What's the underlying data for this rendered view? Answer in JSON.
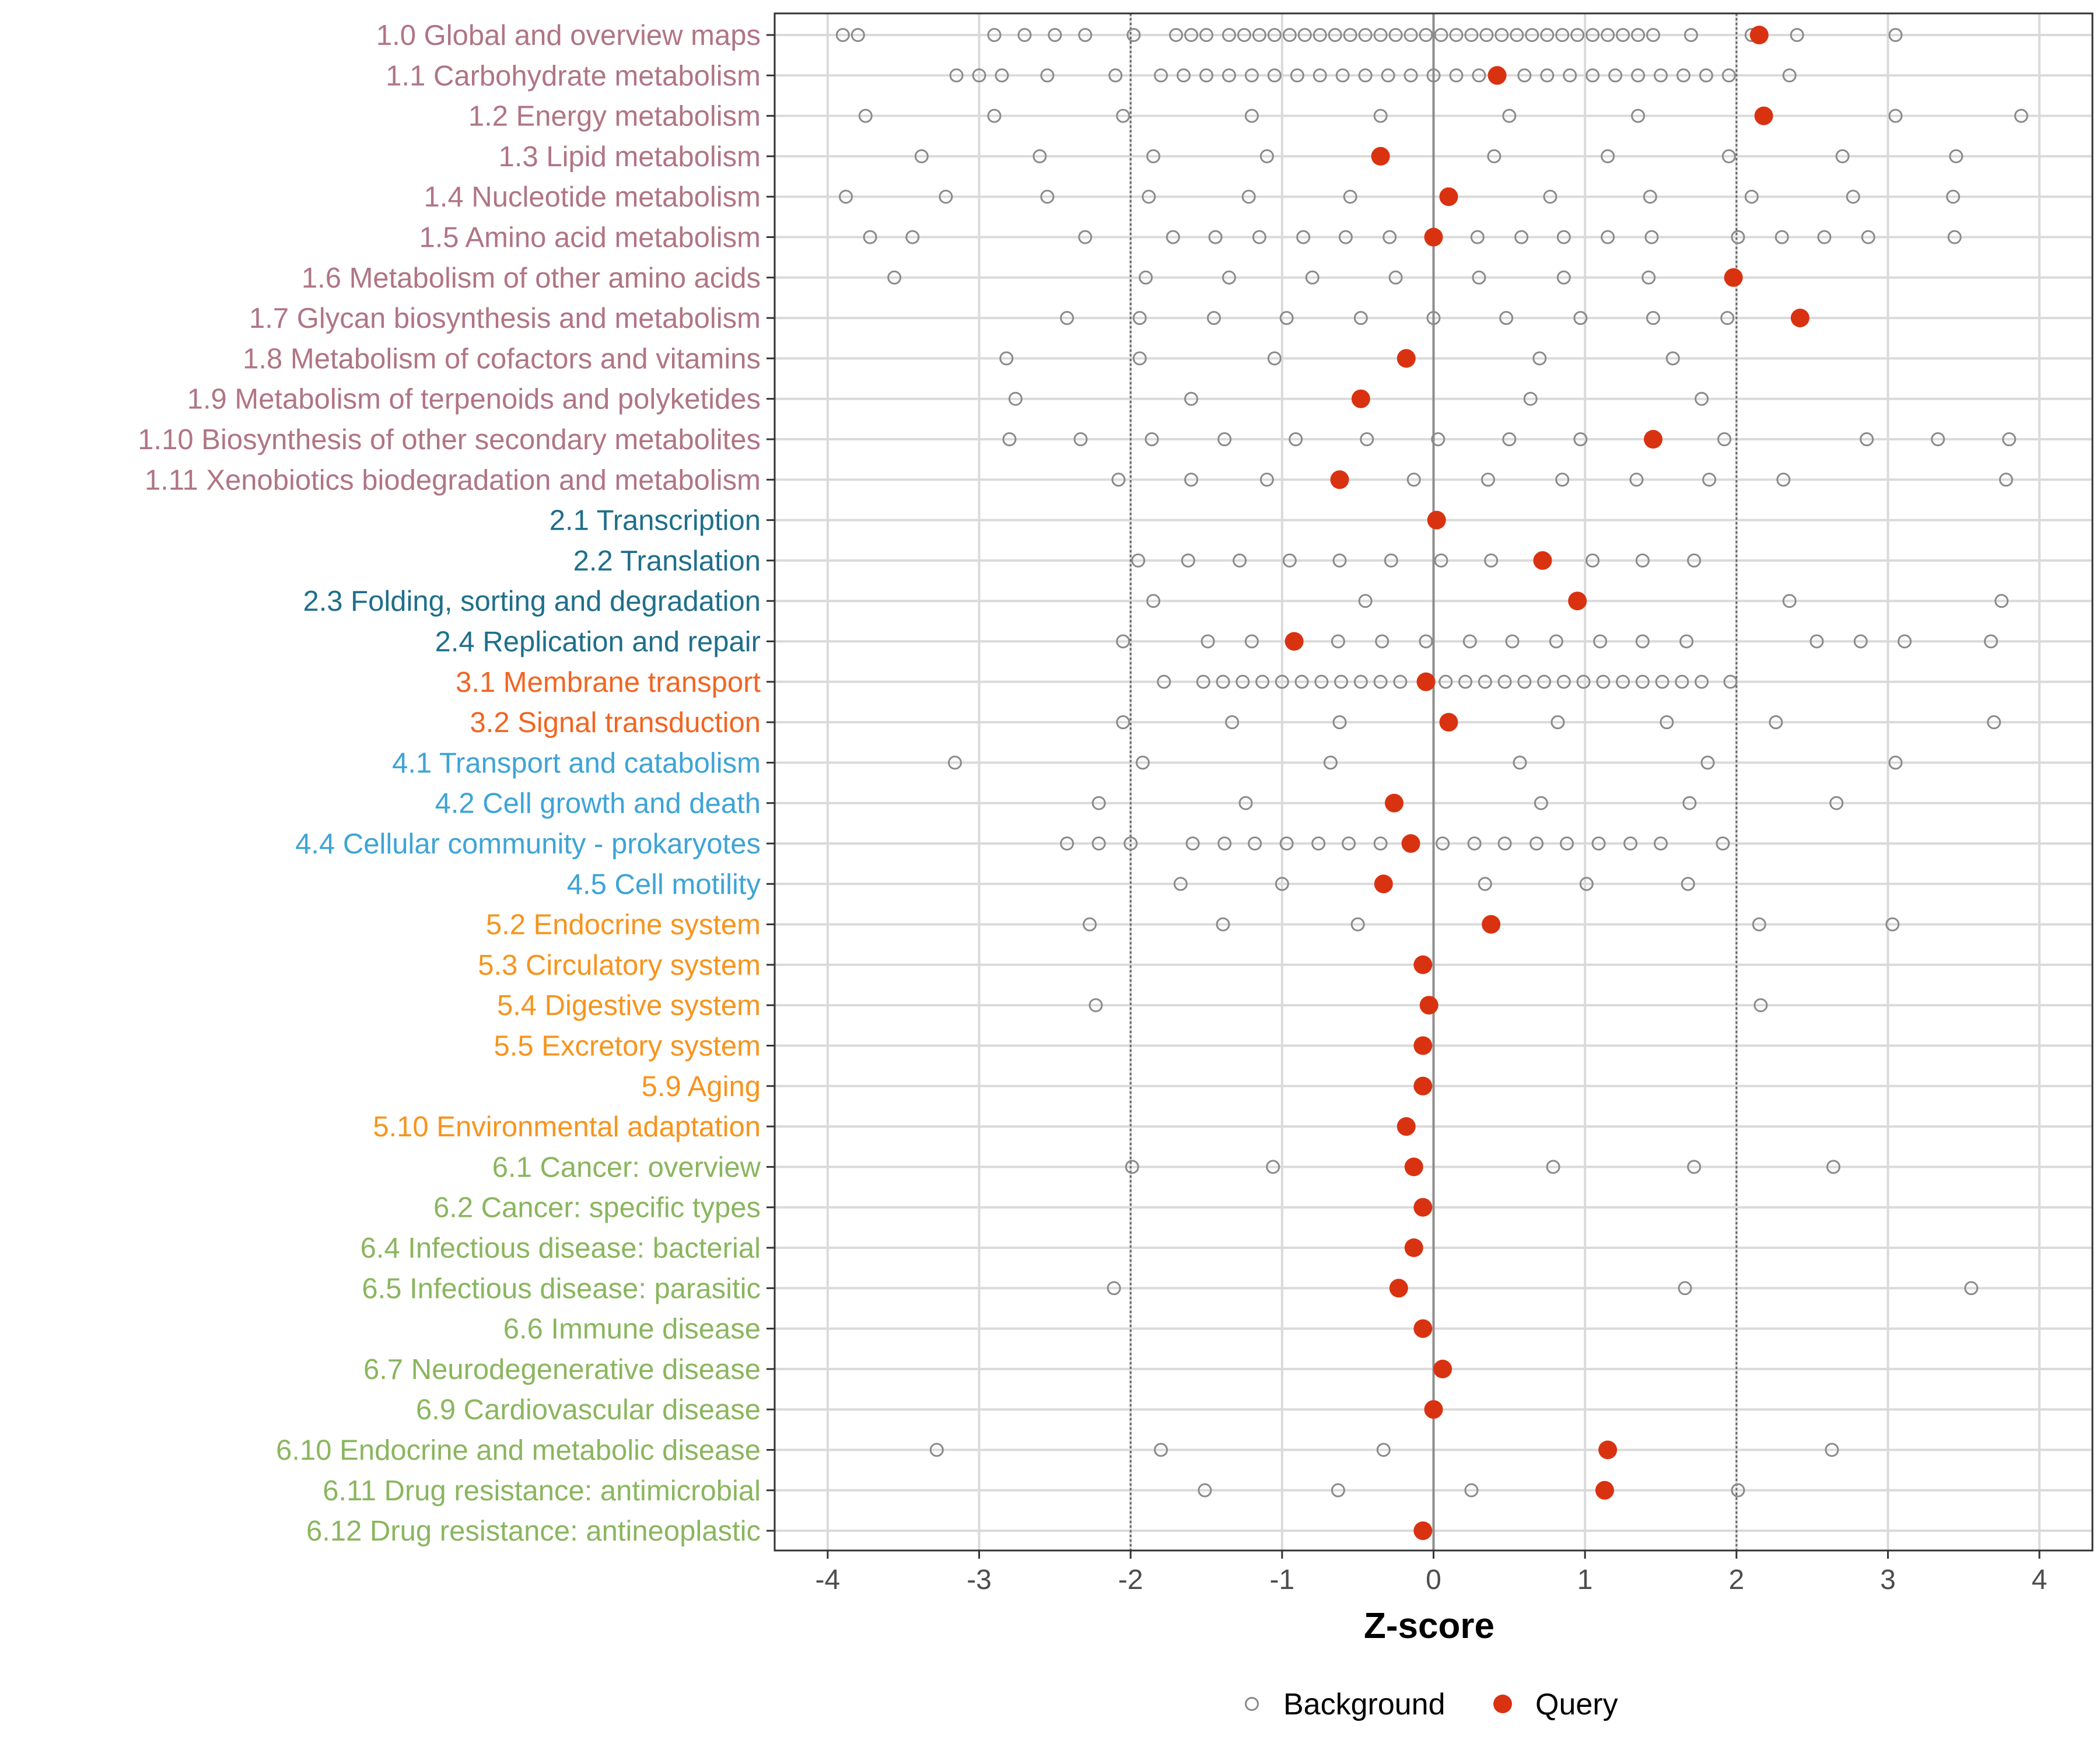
{
  "chart_data": {
    "type": "scatter",
    "xlabel": "Z-score",
    "ylabel": "",
    "xlim": [
      -4.35,
      4.35
    ],
    "xticks": [
      -4,
      -3,
      -2,
      -1,
      0,
      1,
      2,
      3,
      4
    ],
    "xtick_labels": [
      "-4",
      "-3",
      "-2",
      "-1",
      "0",
      "1",
      "2",
      "3",
      "4"
    ],
    "reference_lines": [
      -2,
      0,
      2
    ],
    "grid": true,
    "legend_position": "bottom",
    "legend": [
      {
        "name": "Background",
        "marker": "open-circle",
        "color": "#808080"
      },
      {
        "name": "Query",
        "marker": "filled-circle",
        "color": "#d93211"
      }
    ],
    "group_colors": {
      "1": "#b07585",
      "2": "#1f6f8b",
      "3": "#f26522",
      "4": "#3ea4d6",
      "5": "#f7941d",
      "6": "#8ab65e"
    },
    "categories": [
      {
        "label": "1.0 Global and overview maps",
        "group": "1",
        "query": 2.15,
        "background": [
          -3.9,
          -3.8,
          -2.9,
          -2.7,
          -2.5,
          -2.3,
          -1.98,
          -1.7,
          -1.6,
          -1.5,
          -1.35,
          -1.25,
          -1.15,
          -1.05,
          -0.95,
          -0.85,
          -0.75,
          -0.65,
          -0.55,
          -0.45,
          -0.35,
          -0.25,
          -0.15,
          -0.05,
          0.05,
          0.15,
          0.25,
          0.35,
          0.45,
          0.55,
          0.65,
          0.75,
          0.85,
          0.95,
          1.05,
          1.15,
          1.25,
          1.35,
          1.45,
          1.7,
          2.1,
          2.4,
          3.05
        ]
      },
      {
        "label": "1.1 Carbohydrate metabolism",
        "group": "1",
        "query": 0.42,
        "background": [
          -3.15,
          -3.0,
          -2.85,
          -2.55,
          -2.1,
          -1.8,
          -1.65,
          -1.5,
          -1.35,
          -1.2,
          -1.05,
          -0.9,
          -0.75,
          -0.6,
          -0.45,
          -0.3,
          -0.15,
          0.0,
          0.15,
          0.3,
          0.6,
          0.75,
          0.9,
          1.05,
          1.2,
          1.35,
          1.5,
          1.65,
          1.8,
          1.95,
          2.35
        ]
      },
      {
        "label": "1.2 Energy metabolism",
        "group": "1",
        "query": 2.18,
        "background": [
          -3.75,
          -2.9,
          -2.05,
          -1.2,
          -0.35,
          0.5,
          1.35,
          3.05,
          3.88
        ]
      },
      {
        "label": "1.3 Lipid metabolism",
        "group": "1",
        "query": -0.35,
        "background": [
          -3.38,
          -2.6,
          -1.85,
          -1.1,
          0.4,
          1.15,
          1.95,
          2.7,
          3.45
        ]
      },
      {
        "label": "1.4 Nucleotide metabolism",
        "group": "1",
        "query": 0.1,
        "background": [
          -3.88,
          -3.22,
          -2.55,
          -1.88,
          -1.22,
          -0.55,
          0.77,
          1.43,
          2.1,
          2.77,
          3.43
        ]
      },
      {
        "label": "1.5 Amino acid metabolism",
        "group": "1",
        "query": 0.0,
        "background": [
          -3.72,
          -3.44,
          -2.3,
          -1.72,
          -1.44,
          -1.15,
          -0.86,
          -0.58,
          -0.29,
          0.29,
          0.58,
          0.86,
          1.15,
          1.44,
          2.01,
          2.3,
          2.58,
          2.87,
          3.44
        ]
      },
      {
        "label": "1.6 Metabolism of other amino acids",
        "group": "1",
        "query": 1.98,
        "background": [
          -3.56,
          -1.9,
          -1.35,
          -0.8,
          -0.25,
          0.3,
          0.86,
          1.42
        ]
      },
      {
        "label": "1.7 Glycan biosynthesis and metabolism",
        "group": "1",
        "query": 2.42,
        "background": [
          -2.42,
          -1.94,
          -1.45,
          -0.97,
          -0.48,
          0.0,
          0.48,
          0.97,
          1.45,
          1.94
        ]
      },
      {
        "label": "1.8 Metabolism of cofactors and vitamins",
        "group": "1",
        "query": -0.18,
        "background": [
          -2.82,
          -1.94,
          -1.05,
          0.7,
          1.58
        ]
      },
      {
        "label": "1.9 Metabolism of terpenoids and polyketides",
        "group": "1",
        "query": -0.48,
        "background": [
          -2.76,
          -1.6,
          0.64,
          1.77
        ]
      },
      {
        "label": "1.10 Biosynthesis of other secondary metabolites",
        "group": "1",
        "query": 1.45,
        "background": [
          -2.8,
          -2.33,
          -1.86,
          -1.38,
          -0.91,
          -0.44,
          0.03,
          0.5,
          0.97,
          1.92,
          2.86,
          3.33,
          3.8
        ]
      },
      {
        "label": "1.11 Xenobiotics biodegradation and metabolism",
        "group": "1",
        "query": -0.62,
        "background": [
          -2.08,
          -1.6,
          -1.1,
          -0.13,
          0.36,
          0.85,
          1.34,
          1.82,
          2.31,
          3.78
        ]
      },
      {
        "label": "2.1 Transcription",
        "group": "2",
        "query": 0.02,
        "background": []
      },
      {
        "label": "2.2 Translation",
        "group": "2",
        "query": 0.72,
        "background": [
          -1.95,
          -1.62,
          -1.28,
          -0.95,
          -0.62,
          -0.28,
          0.05,
          0.38,
          1.05,
          1.38,
          1.72
        ]
      },
      {
        "label": "2.3 Folding, sorting and degradation",
        "group": "2",
        "query": 0.95,
        "background": [
          -1.85,
          -0.45,
          2.35,
          3.75
        ]
      },
      {
        "label": "2.4 Replication and repair",
        "group": "2",
        "query": -0.92,
        "background": [
          -2.05,
          -1.49,
          -1.2,
          -0.63,
          -0.34,
          -0.05,
          0.24,
          0.52,
          0.81,
          1.1,
          1.38,
          1.67,
          2.53,
          2.82,
          3.11,
          3.68
        ]
      },
      {
        "label": "3.1 Membrane transport",
        "group": "3",
        "query": -0.05,
        "background": [
          -1.78,
          -1.52,
          -1.39,
          -1.26,
          -1.13,
          -1.0,
          -0.87,
          -0.74,
          -0.61,
          -0.48,
          -0.35,
          -0.22,
          0.08,
          0.21,
          0.34,
          0.47,
          0.6,
          0.73,
          0.86,
          0.99,
          1.12,
          1.25,
          1.38,
          1.51,
          1.64,
          1.77,
          1.96
        ]
      },
      {
        "label": "3.2 Signal transduction",
        "group": "3",
        "query": 0.1,
        "background": [
          -2.05,
          -1.33,
          -0.62,
          0.82,
          1.54,
          2.26,
          3.7
        ]
      },
      {
        "label": "4.1 Transport and catabolism",
        "group": "4",
        "query": null,
        "background": [
          -3.16,
          -1.92,
          -0.68,
          0.57,
          1.81,
          3.05
        ]
      },
      {
        "label": "4.2 Cell growth and death",
        "group": "4",
        "query": -0.26,
        "background": [
          -2.21,
          -1.24,
          0.71,
          1.69,
          2.66
        ]
      },
      {
        "label": "4.4 Cellular community - prokaryotes",
        "group": "4",
        "query": -0.15,
        "background": [
          -2.42,
          -2.21,
          -2.0,
          -1.59,
          -1.38,
          -1.18,
          -0.97,
          -0.76,
          -0.56,
          -0.35,
          0.06,
          0.27,
          0.47,
          0.68,
          0.88,
          1.09,
          1.3,
          1.5,
          1.91
        ]
      },
      {
        "label": "4.5 Cell motility",
        "group": "4",
        "query": -0.33,
        "background": [
          -1.67,
          -1.0,
          0.34,
          1.01,
          1.68
        ]
      },
      {
        "label": "5.2 Endocrine system",
        "group": "5",
        "query": 0.38,
        "background": [
          -2.27,
          -1.39,
          -0.5,
          2.15,
          3.03
        ]
      },
      {
        "label": "5.3 Circulatory system",
        "group": "5",
        "query": -0.07,
        "background": []
      },
      {
        "label": "5.4 Digestive system",
        "group": "5",
        "query": -0.03,
        "background": [
          -2.23,
          2.16
        ]
      },
      {
        "label": "5.5 Excretory system",
        "group": "5",
        "query": -0.07,
        "background": []
      },
      {
        "label": "5.9 Aging",
        "group": "5",
        "query": -0.07,
        "background": []
      },
      {
        "label": "5.10 Environmental adaptation",
        "group": "5",
        "query": -0.18,
        "background": []
      },
      {
        "label": "6.1 Cancer: overview",
        "group": "6",
        "query": -0.13,
        "background": [
          -1.99,
          -1.06,
          0.79,
          1.72,
          2.64
        ]
      },
      {
        "label": "6.2 Cancer: specific types",
        "group": "6",
        "query": -0.07,
        "background": []
      },
      {
        "label": "6.4 Infectious disease: bacterial",
        "group": "6",
        "query": -0.13,
        "background": []
      },
      {
        "label": "6.5 Infectious disease: parasitic",
        "group": "6",
        "query": -0.23,
        "background": [
          -2.11,
          1.66,
          3.55
        ]
      },
      {
        "label": "6.6 Immune disease",
        "group": "6",
        "query": -0.07,
        "background": []
      },
      {
        "label": "6.7 Neurodegenerative disease",
        "group": "6",
        "query": 0.06,
        "background": []
      },
      {
        "label": "6.9 Cardiovascular disease",
        "group": "6",
        "query": 0.0,
        "background": []
      },
      {
        "label": "6.10 Endocrine and metabolic disease",
        "group": "6",
        "query": 1.15,
        "background": [
          -3.28,
          -1.8,
          -0.33,
          2.63
        ]
      },
      {
        "label": "6.11 Drug resistance: antimicrobial",
        "group": "6",
        "query": 1.13,
        "background": [
          -1.51,
          -0.63,
          0.25,
          2.01
        ]
      },
      {
        "label": "6.12 Drug resistance: antineoplastic",
        "group": "6",
        "query": -0.07,
        "background": []
      }
    ]
  }
}
